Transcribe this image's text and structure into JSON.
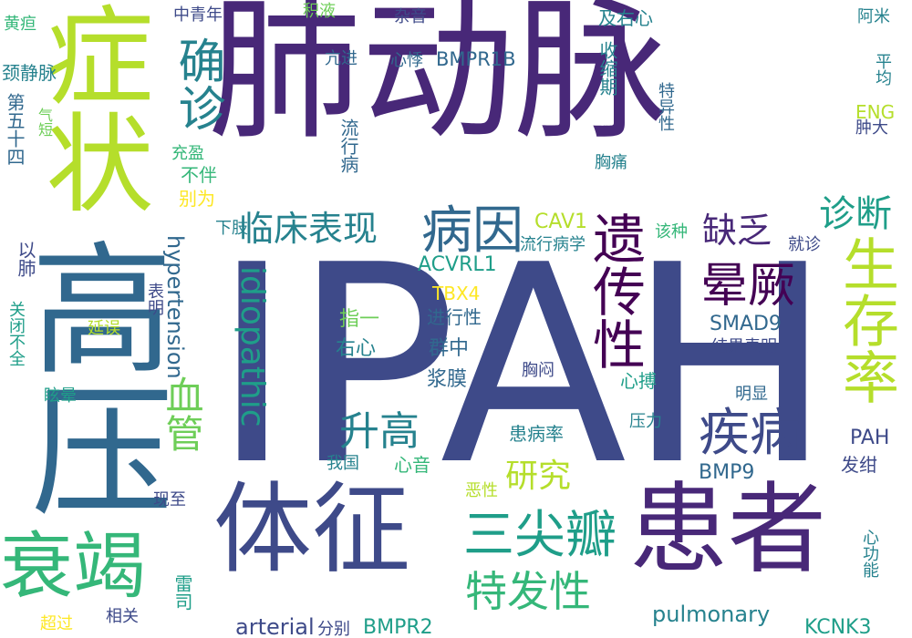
{
  "palette": {
    "c0": "#440154",
    "c1": "#482878",
    "c2": "#3e4a89",
    "c3": "#31688e",
    "c4": "#26828e",
    "c5": "#1f9e89",
    "c6": "#35b779",
    "c7": "#6ece58",
    "c8": "#b5de2b",
    "c9": "#fde725",
    "background": "#ffffff"
  },
  "words": [
    {
      "text": "肺动脉",
      "color": "#482878"
    },
    {
      "text": "IPAH",
      "color": "#3e4a89"
    },
    {
      "text": "症状",
      "color": "#b5de2b"
    },
    {
      "text": "高压",
      "color": "#31688e"
    },
    {
      "text": "患者",
      "color": "#482878"
    },
    {
      "text": "体征",
      "color": "#3e4a89"
    },
    {
      "text": "衰竭",
      "color": "#35b779"
    },
    {
      "text": "确诊",
      "color": "#26828e"
    },
    {
      "text": "遗传性",
      "color": "#440154"
    },
    {
      "text": "生存率",
      "color": "#b5de2b"
    },
    {
      "text": "病因",
      "color": "#31688e"
    },
    {
      "text": "晕厥",
      "color": "#440154"
    },
    {
      "text": "三尖瓣",
      "color": "#1f9e89"
    },
    {
      "text": "疾病",
      "color": "#3e4a89"
    },
    {
      "text": "特发性",
      "color": "#35b779"
    },
    {
      "text": "临床表现",
      "color": "#26828e"
    },
    {
      "text": "诊断",
      "color": "#1f9e89"
    },
    {
      "text": "缺乏",
      "color": "#482878"
    },
    {
      "text": "升高",
      "color": "#26828e"
    },
    {
      "text": "血管",
      "color": "#6ece58"
    },
    {
      "text": "idiopathic",
      "color": "#1f9e89"
    },
    {
      "text": "研究",
      "color": "#b5de2b"
    },
    {
      "text": "hypertension",
      "color": "#31688e"
    },
    {
      "text": "pulmonary",
      "color": "#26828e"
    },
    {
      "text": "arterial",
      "color": "#3e4a89"
    },
    {
      "text": "BMPR2",
      "color": "#1f9e89"
    },
    {
      "text": "KCNK3",
      "color": "#1f9e89"
    },
    {
      "text": "BMPR1B",
      "color": "#31688e"
    },
    {
      "text": "ACVRL1",
      "color": "#1f9e89"
    },
    {
      "text": "CAV1",
      "color": "#b5de2b"
    },
    {
      "text": "TBX4",
      "color": "#fde725"
    },
    {
      "text": "SMAD9",
      "color": "#31688e"
    },
    {
      "text": "BMP9",
      "color": "#31688e"
    },
    {
      "text": "ENG",
      "color": "#b5de2b"
    },
    {
      "text": "PAH",
      "color": "#3e4a89"
    },
    {
      "text": "中青年",
      "color": "#3e4a89"
    },
    {
      "text": "积液",
      "color": "#6ece58"
    },
    {
      "text": "杂音",
      "color": "#3e4a89"
    },
    {
      "text": "及右心",
      "color": "#26828e"
    },
    {
      "text": "阿米",
      "color": "#26828e"
    },
    {
      "text": "黄疸",
      "color": "#35b779"
    },
    {
      "text": "颈静脉",
      "color": "#26828e"
    },
    {
      "text": "亢进",
      "color": "#31688e"
    },
    {
      "text": "心悸",
      "color": "#31688e"
    },
    {
      "text": "收缩期",
      "color": "#26828e"
    },
    {
      "text": "流行病",
      "color": "#31688e"
    },
    {
      "text": "特异性",
      "color": "#31688e"
    },
    {
      "text": "平均",
      "color": "#26828e"
    },
    {
      "text": "肿大",
      "color": "#3e4a89"
    },
    {
      "text": "第五十四",
      "color": "#31688e"
    },
    {
      "text": "气短",
      "color": "#6ece58"
    },
    {
      "text": "充盈",
      "color": "#35b779"
    },
    {
      "text": "不伴",
      "color": "#35b779"
    },
    {
      "text": "别为",
      "color": "#fde725"
    },
    {
      "text": "胸痛",
      "color": "#26828e"
    },
    {
      "text": "以肺",
      "color": "#3e4a89"
    },
    {
      "text": "下肢",
      "color": "#26828e"
    },
    {
      "text": "流行病学",
      "color": "#26828e"
    },
    {
      "text": "该种",
      "color": "#35b779"
    },
    {
      "text": "就诊",
      "color": "#3e4a89"
    },
    {
      "text": "表明",
      "color": "#3e4a89"
    },
    {
      "text": "指一",
      "color": "#6ece58"
    },
    {
      "text": "进行性",
      "color": "#31688e"
    },
    {
      "text": "结果表明",
      "color": "#3e4a89"
    },
    {
      "text": "关闭不全",
      "color": "#1f9e89"
    },
    {
      "text": "延误",
      "color": "#b5de2b"
    },
    {
      "text": "右心",
      "color": "#26828e"
    },
    {
      "text": "群中",
      "color": "#31688e"
    },
    {
      "text": "浆膜",
      "color": "#31688e"
    },
    {
      "text": "胸闷",
      "color": "#3e4a89"
    },
    {
      "text": "心搏",
      "color": "#1f9e89"
    },
    {
      "text": "明显",
      "color": "#31688e"
    },
    {
      "text": "眩晕",
      "color": "#1f9e89"
    },
    {
      "text": "压力",
      "color": "#26828e"
    },
    {
      "text": "患病率",
      "color": "#26828e"
    },
    {
      "text": "我国",
      "color": "#26828e"
    },
    {
      "text": "心音",
      "color": "#35b779"
    },
    {
      "text": "发绀",
      "color": "#3e4a89"
    },
    {
      "text": "恶性",
      "color": "#b5de2b"
    },
    {
      "text": "现至",
      "color": "#3e4a89"
    },
    {
      "text": "心功能",
      "color": "#26828e"
    },
    {
      "text": "雷司",
      "color": "#1f9e89"
    },
    {
      "text": "超过",
      "color": "#fde725"
    },
    {
      "text": "相关",
      "color": "#3e4a89"
    },
    {
      "text": "分别",
      "color": "#3e4a89"
    }
  ]
}
